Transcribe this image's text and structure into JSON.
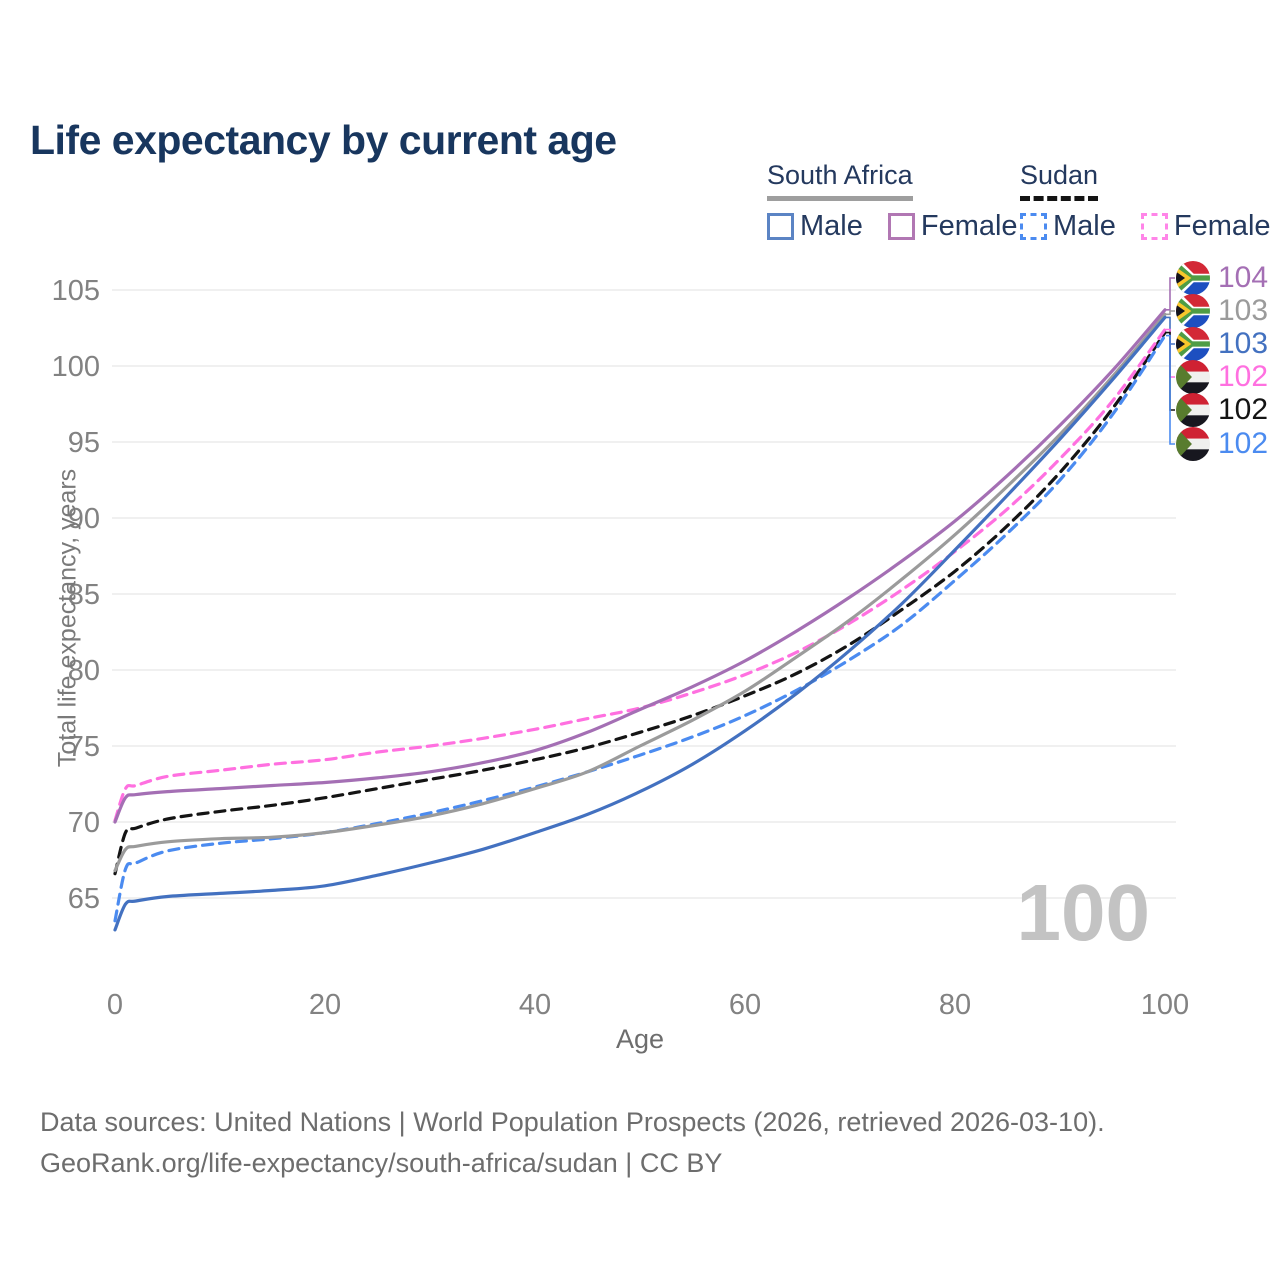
{
  "title": "Life expectancy by current age",
  "legend": {
    "groups": [
      {
        "title": "South Africa",
        "line_style": "solid",
        "underline_color": "#9e9e9e",
        "items": [
          {
            "label": "Male",
            "color": "#5b84c4"
          },
          {
            "label": "Female",
            "color": "#b177b3"
          }
        ]
      },
      {
        "title": "Sudan",
        "line_style": "dashed",
        "underline_color": "#141414",
        "items": [
          {
            "label": "Male",
            "color": "#4b8bf0"
          },
          {
            "label": "Female",
            "color": "#ff85e8"
          }
        ]
      }
    ]
  },
  "watermark": "100",
  "chart_data": {
    "type": "line",
    "title": "Life expectancy by current age",
    "xlabel": "Age",
    "ylabel": "Total life expectancy, years",
    "x_ticks": [
      0,
      20,
      40,
      60,
      80,
      100
    ],
    "y_ticks": [
      65,
      70,
      75,
      80,
      85,
      90,
      95,
      100,
      105
    ],
    "xlim": [
      0,
      100
    ],
    "ylim": [
      62,
      106
    ],
    "grid": "horizontal-only",
    "legend_position": "top-right",
    "ages": [
      0,
      1,
      2,
      5,
      10,
      15,
      20,
      25,
      30,
      35,
      40,
      45,
      50,
      55,
      60,
      65,
      70,
      75,
      80,
      85,
      90,
      95,
      100
    ],
    "series": [
      {
        "name": "South Africa Female",
        "country": "south-africa",
        "sex": "female",
        "style": "solid",
        "color": "#a46fb4",
        "end_label": "104",
        "values": [
          70.0,
          71.6,
          71.8,
          72.0,
          72.2,
          72.4,
          72.6,
          72.9,
          73.3,
          73.9,
          74.7,
          75.9,
          77.4,
          78.9,
          80.6,
          82.6,
          84.8,
          87.2,
          89.8,
          92.8,
          96.1,
          99.7,
          103.7
        ]
      },
      {
        "name": "South Africa Total",
        "country": "south-africa",
        "sex": "total",
        "style": "solid",
        "color": "#9b9b9b",
        "end_label": "103",
        "values": [
          66.8,
          68.2,
          68.4,
          68.7,
          68.9,
          69.0,
          69.3,
          69.8,
          70.4,
          71.2,
          72.2,
          73.3,
          75.0,
          76.7,
          78.6,
          80.9,
          83.3,
          86.0,
          88.9,
          92.1,
          95.5,
          99.3,
          103.4
        ]
      },
      {
        "name": "South Africa Male",
        "country": "south-africa",
        "sex": "male",
        "style": "solid",
        "color": "#4371c0",
        "end_label": "103",
        "values": [
          62.9,
          64.6,
          64.8,
          65.1,
          65.3,
          65.5,
          65.8,
          66.5,
          67.3,
          68.2,
          69.3,
          70.5,
          72.0,
          73.8,
          76.0,
          78.5,
          81.3,
          84.4,
          87.9,
          91.5,
          95.2,
          99.1,
          103.2
        ]
      },
      {
        "name": "Sudan Female",
        "country": "sudan",
        "sex": "female",
        "style": "dashed",
        "color": "#ff70e0",
        "end_label": "102",
        "values": [
          70.1,
          72.2,
          72.4,
          73.0,
          73.4,
          73.8,
          74.1,
          74.6,
          75.0,
          75.5,
          76.1,
          76.8,
          77.5,
          78.5,
          79.7,
          81.2,
          83.1,
          85.3,
          87.8,
          90.6,
          93.9,
          97.7,
          102.4
        ]
      },
      {
        "name": "Sudan Total",
        "country": "sudan",
        "sex": "total",
        "style": "dashed",
        "color": "#141414",
        "end_label": "102",
        "values": [
          66.6,
          69.3,
          69.6,
          70.2,
          70.7,
          71.1,
          71.6,
          72.2,
          72.8,
          73.4,
          74.1,
          74.9,
          75.9,
          77.0,
          78.3,
          79.8,
          81.7,
          84.0,
          86.5,
          89.5,
          93.0,
          97.2,
          102.2
        ]
      },
      {
        "name": "Sudan Male",
        "country": "sudan",
        "sex": "male",
        "style": "dashed",
        "color": "#4b8bf0",
        "end_label": "102",
        "values": [
          63.5,
          66.9,
          67.3,
          68.1,
          68.6,
          68.9,
          69.3,
          69.9,
          70.6,
          71.4,
          72.3,
          73.3,
          74.4,
          75.6,
          77.0,
          78.7,
          80.7,
          83.0,
          85.9,
          89.0,
          92.5,
          96.8,
          102.0
        ]
      }
    ]
  },
  "caption": {
    "line1": "Data sources: United Nations | World Population Prospects (2026, retrieved 2026-03-10).",
    "line2": "GeoRank.org/life-expectancy/south-africa/sudan | CC BY"
  }
}
